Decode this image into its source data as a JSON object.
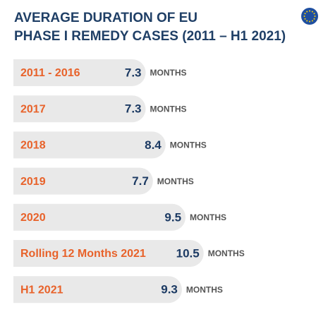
{
  "chart_data": {
    "type": "bar",
    "orientation": "horizontal",
    "title": [
      "AVERAGE DURATION OF EU",
      "PHASE I REMEDY CASES (2011 – H1 2021)"
    ],
    "categories": [
      "2011 - 2016",
      "2017",
      "2018",
      "2019",
      "2020",
      "Rolling 12 Months 2021",
      "H1 2021"
    ],
    "values": [
      7.3,
      7.3,
      8.4,
      7.7,
      9.5,
      10.5,
      9.3
    ],
    "unit_label": "MONTHS",
    "color": "#e9e9e9",
    "category_color": "#e8622a",
    "value_color": "#1c3a63",
    "xlim": [
      0,
      16
    ]
  }
}
